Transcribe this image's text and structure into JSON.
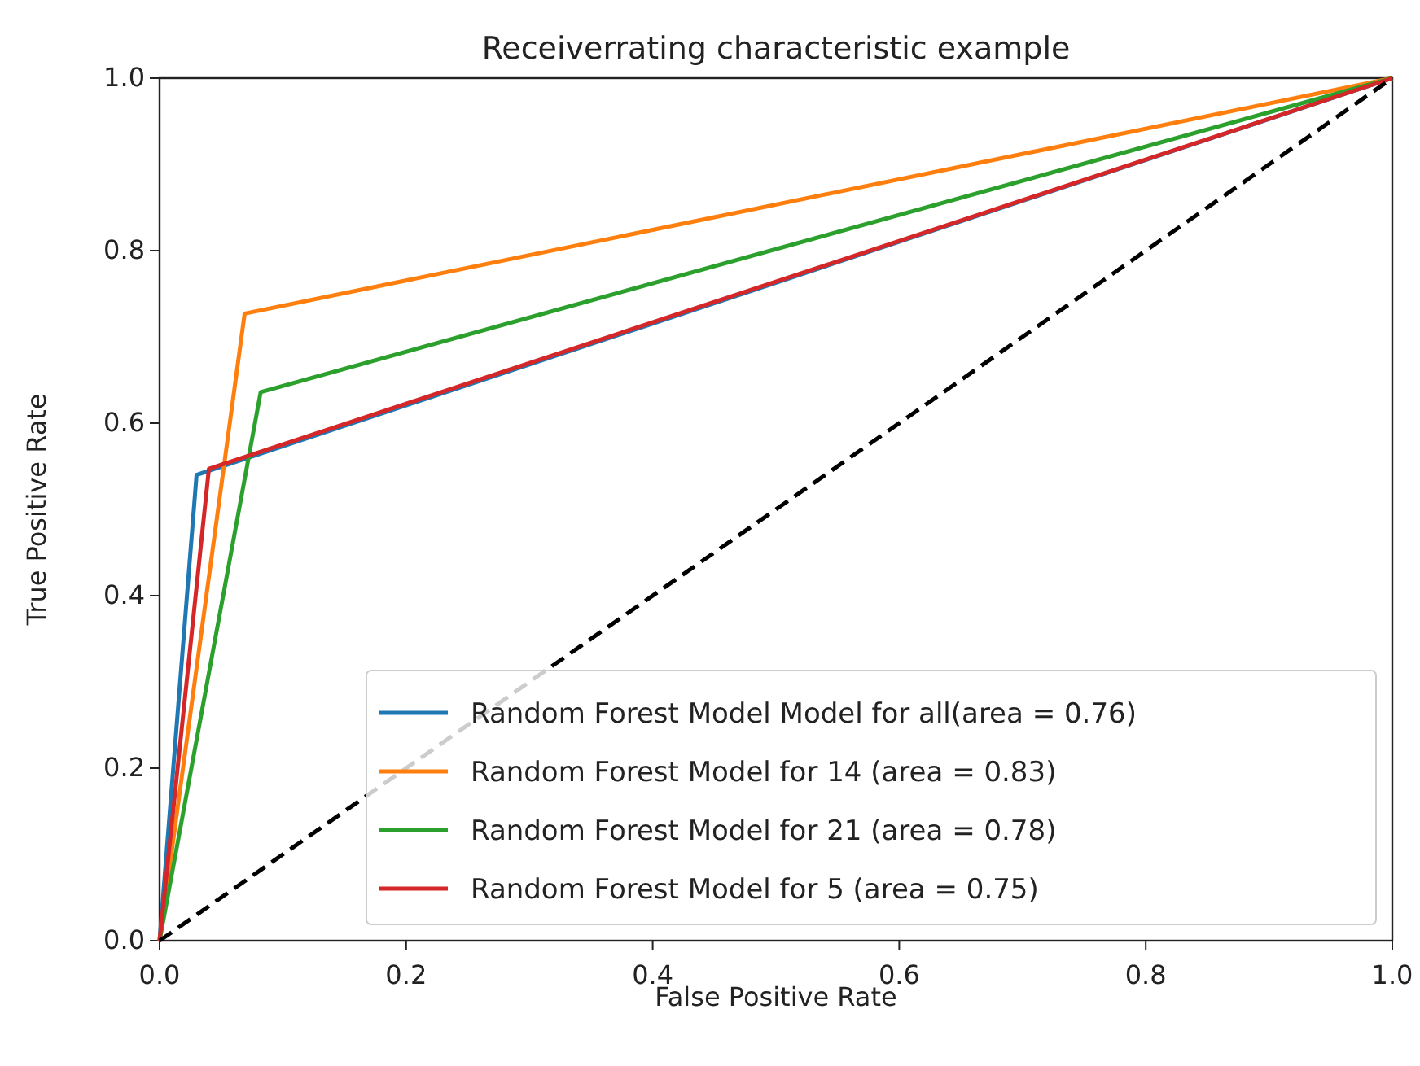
{
  "chart_data": {
    "type": "line",
    "title": "Receiverrating characteristic example",
    "xlabel": "False Positive Rate",
    "ylabel": "True Positive Rate",
    "xlim": [
      0,
      1
    ],
    "ylim": [
      0,
      1
    ],
    "xticks": [
      {
        "value": 0,
        "label": "0.0"
      },
      {
        "value": 0.2,
        "label": "0.2"
      },
      {
        "value": 0.4,
        "label": "0.4"
      },
      {
        "value": 0.6,
        "label": "0.6"
      },
      {
        "value": 0.8,
        "label": "0.8"
      },
      {
        "value": 1,
        "label": "1.0"
      }
    ],
    "yticks": [
      {
        "value": 0,
        "label": "0.0"
      },
      {
        "value": 0.2,
        "label": "0.2"
      },
      {
        "value": 0.4,
        "label": "0.4"
      },
      {
        "value": 0.6,
        "label": "0.6"
      },
      {
        "value": 0.8,
        "label": "0.8"
      },
      {
        "value": 1,
        "label": "1.0"
      }
    ],
    "legend": "bottom right",
    "grid": false,
    "series": [
      {
        "name": "Random Forest Model Model for all(area = 0.76)",
        "color": "#1f77b4",
        "x": [
          0,
          0.03,
          1
        ],
        "values": [
          0,
          0.54,
          1
        ]
      },
      {
        "name": "Random Forest Model for 14 (area = 0.83)",
        "color": "#ff7f0e",
        "x": [
          0,
          0.069,
          1
        ],
        "values": [
          0,
          0.727,
          1
        ]
      },
      {
        "name": "Random Forest Model for 21 (area = 0.78)",
        "color": "#2ca02c",
        "x": [
          0,
          0.082,
          1
        ],
        "values": [
          0,
          0.636,
          1
        ]
      },
      {
        "name": "Random Forest Model for 5 (area = 0.75)",
        "color": "#d62728",
        "x": [
          0,
          0.04,
          1
        ],
        "values": [
          0,
          0.547,
          1
        ]
      },
      {
        "color": "#000000",
        "line_style": "dashed",
        "x": [
          0,
          1
        ],
        "values": [
          0,
          1
        ]
      }
    ]
  }
}
